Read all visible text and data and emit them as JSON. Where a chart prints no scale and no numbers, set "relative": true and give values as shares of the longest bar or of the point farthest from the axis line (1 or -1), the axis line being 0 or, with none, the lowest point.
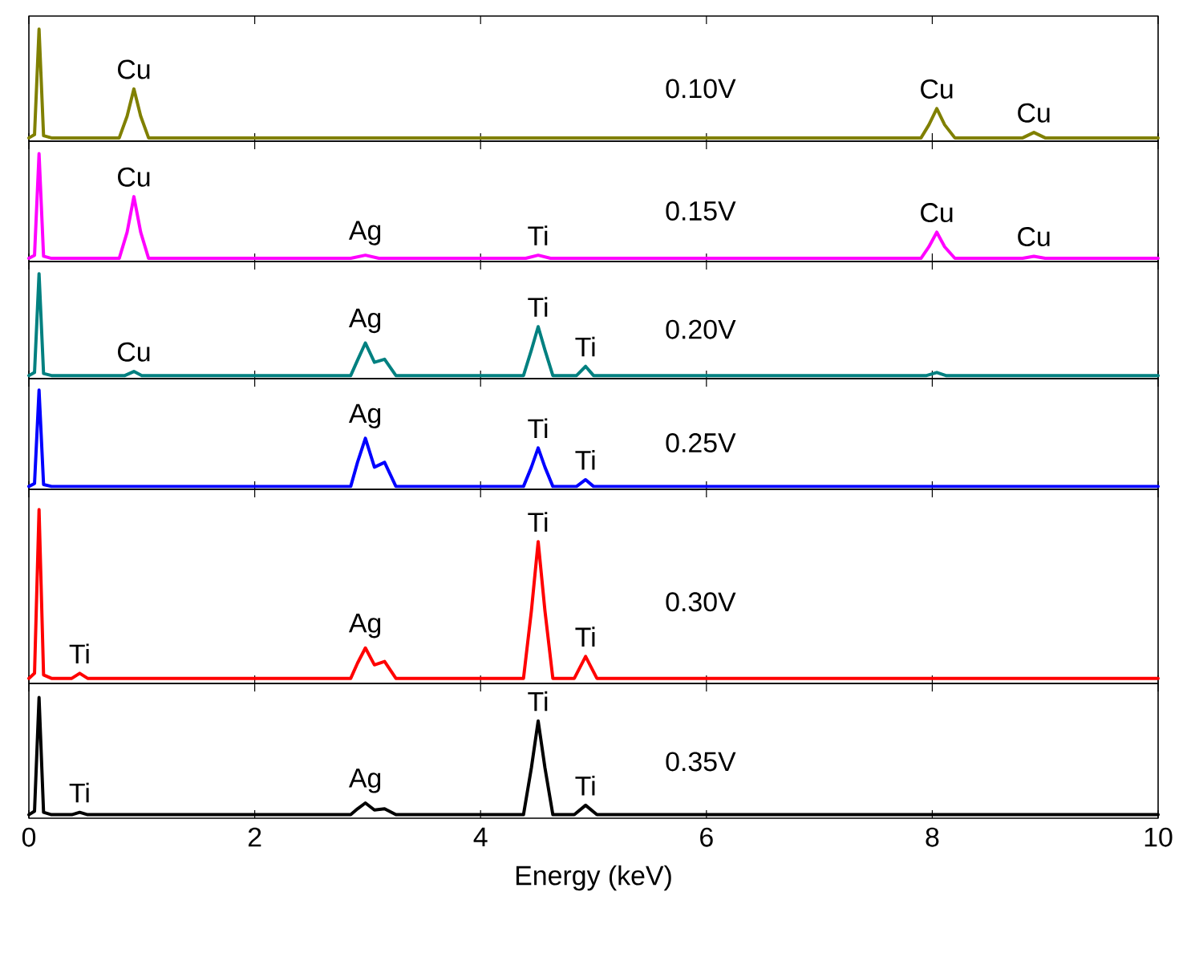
{
  "chart_data": [
    {
      "type": "line",
      "relative": true,
      "xlim": [
        0,
        10
      ],
      "xticks": [
        0,
        2,
        4,
        6,
        8,
        10
      ],
      "tick_labels": false,
      "x": [
        0,
        0.05,
        0.09,
        0.13,
        0.2,
        0.8,
        0.87,
        0.93,
        0.99,
        1.06,
        7.9,
        7.97,
        8.04,
        8.11,
        8.2,
        8.8,
        8.9,
        9.0,
        10
      ],
      "series": [
        {
          "name": "0.10V",
          "color": "#808000",
          "values": [
            0,
            0.03,
            1,
            0.02,
            0,
            0,
            0.2,
            0.45,
            0.2,
            0,
            0,
            0.12,
            0.27,
            0.12,
            0,
            0,
            0.05,
            0,
            0
          ]
        }
      ],
      "annotations": [
        {
          "text": "Cu",
          "x": 0.93,
          "y": 0.45
        },
        {
          "text": "Cu",
          "x": 8.04,
          "y": 0.27
        },
        {
          "text": "Cu",
          "x": 8.9,
          "y": 0.05
        }
      ]
    },
    {
      "type": "line",
      "relative": true,
      "xlim": [
        0,
        10
      ],
      "xticks": [
        0,
        2,
        4,
        6,
        8,
        10
      ],
      "tick_labels": false,
      "x": [
        0,
        0.05,
        0.09,
        0.13,
        0.2,
        0.8,
        0.87,
        0.93,
        0.99,
        1.06,
        2.85,
        2.98,
        3.1,
        4.4,
        4.51,
        4.62,
        7.9,
        7.97,
        8.04,
        8.11,
        8.2,
        8.8,
        8.9,
        9.0,
        10
      ],
      "series": [
        {
          "name": "0.15V",
          "color": "#ff00ff",
          "values": [
            0,
            0.03,
            1,
            0.02,
            0,
            0,
            0.25,
            0.59,
            0.25,
            0,
            0,
            0.03,
            0,
            0,
            0.03,
            0,
            0,
            0.11,
            0.25,
            0.11,
            0,
            0,
            0.02,
            0,
            0
          ]
        }
      ],
      "annotations": [
        {
          "text": "Cu",
          "x": 0.93,
          "y": 0.59
        },
        {
          "text": "Ag",
          "x": 2.98,
          "y": 0.03
        },
        {
          "text": "Ti",
          "x": 4.51,
          "y": 0.03
        },
        {
          "text": "Cu",
          "x": 8.04,
          "y": 0.25
        },
        {
          "text": "Cu",
          "x": 8.9,
          "y": 0.02
        }
      ]
    },
    {
      "type": "line",
      "relative": true,
      "xlim": [
        0,
        10
      ],
      "xticks": [
        0,
        2,
        4,
        6,
        8,
        10
      ],
      "tick_labels": false,
      "x": [
        0,
        0.05,
        0.09,
        0.13,
        0.2,
        0.85,
        0.93,
        1.0,
        2.85,
        2.91,
        2.98,
        3.06,
        3.15,
        3.25,
        4.38,
        4.45,
        4.51,
        4.57,
        4.64,
        4.85,
        4.93,
        5.0,
        7.95,
        8.04,
        8.12,
        10
      ],
      "series": [
        {
          "name": "0.20V",
          "color": "#008080",
          "values": [
            0,
            0.03,
            1,
            0.02,
            0,
            0,
            0.04,
            0,
            0,
            0.15,
            0.32,
            0.13,
            0.16,
            0,
            0,
            0.25,
            0.48,
            0.25,
            0,
            0,
            0.09,
            0,
            0,
            0.03,
            0,
            0
          ]
        }
      ],
      "annotations": [
        {
          "text": "Cu",
          "x": 0.93,
          "y": 0.04
        },
        {
          "text": "Ag",
          "x": 2.98,
          "y": 0.32
        },
        {
          "text": "Ti",
          "x": 4.51,
          "y": 0.48
        },
        {
          "text": "Ti",
          "x": 4.93,
          "y": 0.09
        }
      ]
    },
    {
      "type": "line",
      "relative": true,
      "xlim": [
        0,
        10
      ],
      "xticks": [
        0,
        2,
        4,
        6,
        8,
        10
      ],
      "tick_labels": false,
      "x": [
        0,
        0.05,
        0.09,
        0.13,
        0.2,
        2.85,
        2.91,
        2.98,
        3.06,
        3.15,
        3.25,
        4.38,
        4.45,
        4.51,
        4.57,
        4.64,
        4.85,
        4.93,
        5.0,
        10
      ],
      "series": [
        {
          "name": "0.25V",
          "color": "#0000ff",
          "values": [
            0,
            0.03,
            1,
            0.02,
            0,
            0,
            0.25,
            0.5,
            0.2,
            0.25,
            0,
            0,
            0.2,
            0.4,
            0.2,
            0,
            0,
            0.07,
            0,
            0
          ]
        }
      ],
      "annotations": [
        {
          "text": "Ag",
          "x": 2.98,
          "y": 0.5
        },
        {
          "text": "Ti",
          "x": 4.51,
          "y": 0.4
        },
        {
          "text": "Ti",
          "x": 4.93,
          "y": 0.07
        }
      ]
    },
    {
      "type": "line",
      "relative": true,
      "xlim": [
        0,
        10
      ],
      "xticks": [
        0,
        2,
        4,
        6,
        8,
        10
      ],
      "tick_labels": false,
      "x": [
        0,
        0.05,
        0.09,
        0.13,
        0.2,
        0.38,
        0.45,
        0.52,
        2.85,
        2.91,
        2.98,
        3.06,
        3.15,
        3.25,
        4.38,
        4.45,
        4.51,
        4.57,
        4.64,
        4.83,
        4.93,
        5.03,
        10
      ],
      "series": [
        {
          "name": "0.30V",
          "color": "#ff0000",
          "values": [
            0,
            0.03,
            1,
            0.02,
            0,
            0,
            0.03,
            0,
            0,
            0.09,
            0.18,
            0.08,
            0.1,
            0,
            0,
            0.4,
            0.81,
            0.4,
            0,
            0,
            0.13,
            0,
            0
          ]
        }
      ],
      "annotations": [
        {
          "text": "Ti",
          "x": 0.45,
          "y": 0.03
        },
        {
          "text": "Ag",
          "x": 2.98,
          "y": 0.18
        },
        {
          "text": "Ti",
          "x": 4.51,
          "y": 0.81
        },
        {
          "text": "Ti",
          "x": 4.93,
          "y": 0.13
        }
      ]
    },
    {
      "type": "line",
      "relative": true,
      "xlim": [
        0,
        10
      ],
      "xticks": [
        0,
        2,
        4,
        6,
        8,
        10
      ],
      "tick_labels": "x",
      "xlabel": "Energy (keV)",
      "x": [
        0,
        0.05,
        0.09,
        0.13,
        0.2,
        0.38,
        0.45,
        0.52,
        2.85,
        2.91,
        2.98,
        3.06,
        3.15,
        3.25,
        4.38,
        4.45,
        4.51,
        4.57,
        4.64,
        4.83,
        4.93,
        5.03,
        10
      ],
      "series": [
        {
          "name": "0.35V",
          "color": "#000000",
          "values": [
            0,
            0.03,
            1,
            0.02,
            0,
            0,
            0.02,
            0,
            0,
            0.05,
            0.1,
            0.04,
            0.05,
            0,
            0,
            0.4,
            0.8,
            0.4,
            0,
            0,
            0.08,
            0,
            0
          ]
        }
      ],
      "annotations": [
        {
          "text": "Ti",
          "x": 0.45,
          "y": 0.02
        },
        {
          "text": "Ag",
          "x": 2.98,
          "y": 0.1
        },
        {
          "text": "Ti",
          "x": 4.51,
          "y": 0.8
        },
        {
          "text": "Ti",
          "x": 4.93,
          "y": 0.08
        }
      ]
    }
  ]
}
